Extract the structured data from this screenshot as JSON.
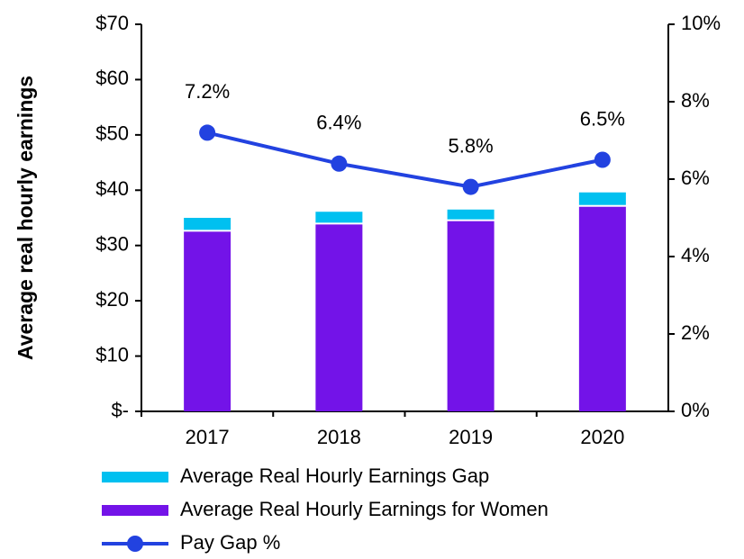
{
  "chart_data": {
    "type": "bar-line",
    "y_label": "Average real hourly earnings",
    "categories": [
      "2017",
      "2018",
      "2019",
      "2020"
    ],
    "series": [
      {
        "name": "Average Real Hourly Earnings Gap",
        "type": "bar",
        "color": "#00c0f0",
        "values": [
          2.5,
          2.3,
          2.1,
          2.6
        ]
      },
      {
        "name": "Average Real Hourly Earnings for Women",
        "type": "bar",
        "color": "#7313e8",
        "values": [
          32.5,
          33.8,
          34.4,
          37.0
        ]
      },
      {
        "name": "Pay Gap %",
        "type": "line",
        "axis": "y2",
        "color": "#2242e0",
        "values": [
          7.2,
          6.4,
          5.8,
          6.5
        ],
        "value_labels": [
          "7.2%",
          "6.4%",
          "5.8%",
          "6.5%"
        ]
      }
    ],
    "ylim": [
      0,
      70
    ],
    "yticks": [
      {
        "value": 0,
        "label": "$-"
      },
      {
        "value": 10,
        "label": "$10"
      },
      {
        "value": 20,
        "label": "$20"
      },
      {
        "value": 30,
        "label": "$30"
      },
      {
        "value": 40,
        "label": "$40"
      },
      {
        "value": 50,
        "label": "$50"
      },
      {
        "value": 60,
        "label": "$60"
      },
      {
        "value": 70,
        "label": "$70"
      }
    ],
    "y2lim": [
      0,
      10
    ],
    "y2ticks": [
      {
        "value": 0,
        "label": "0%"
      },
      {
        "value": 2,
        "label": "2%"
      },
      {
        "value": 4,
        "label": "4%"
      },
      {
        "value": 6,
        "label": "6%"
      },
      {
        "value": 8,
        "label": "8%"
      },
      {
        "value": 10,
        "label": "10%"
      }
    ]
  }
}
